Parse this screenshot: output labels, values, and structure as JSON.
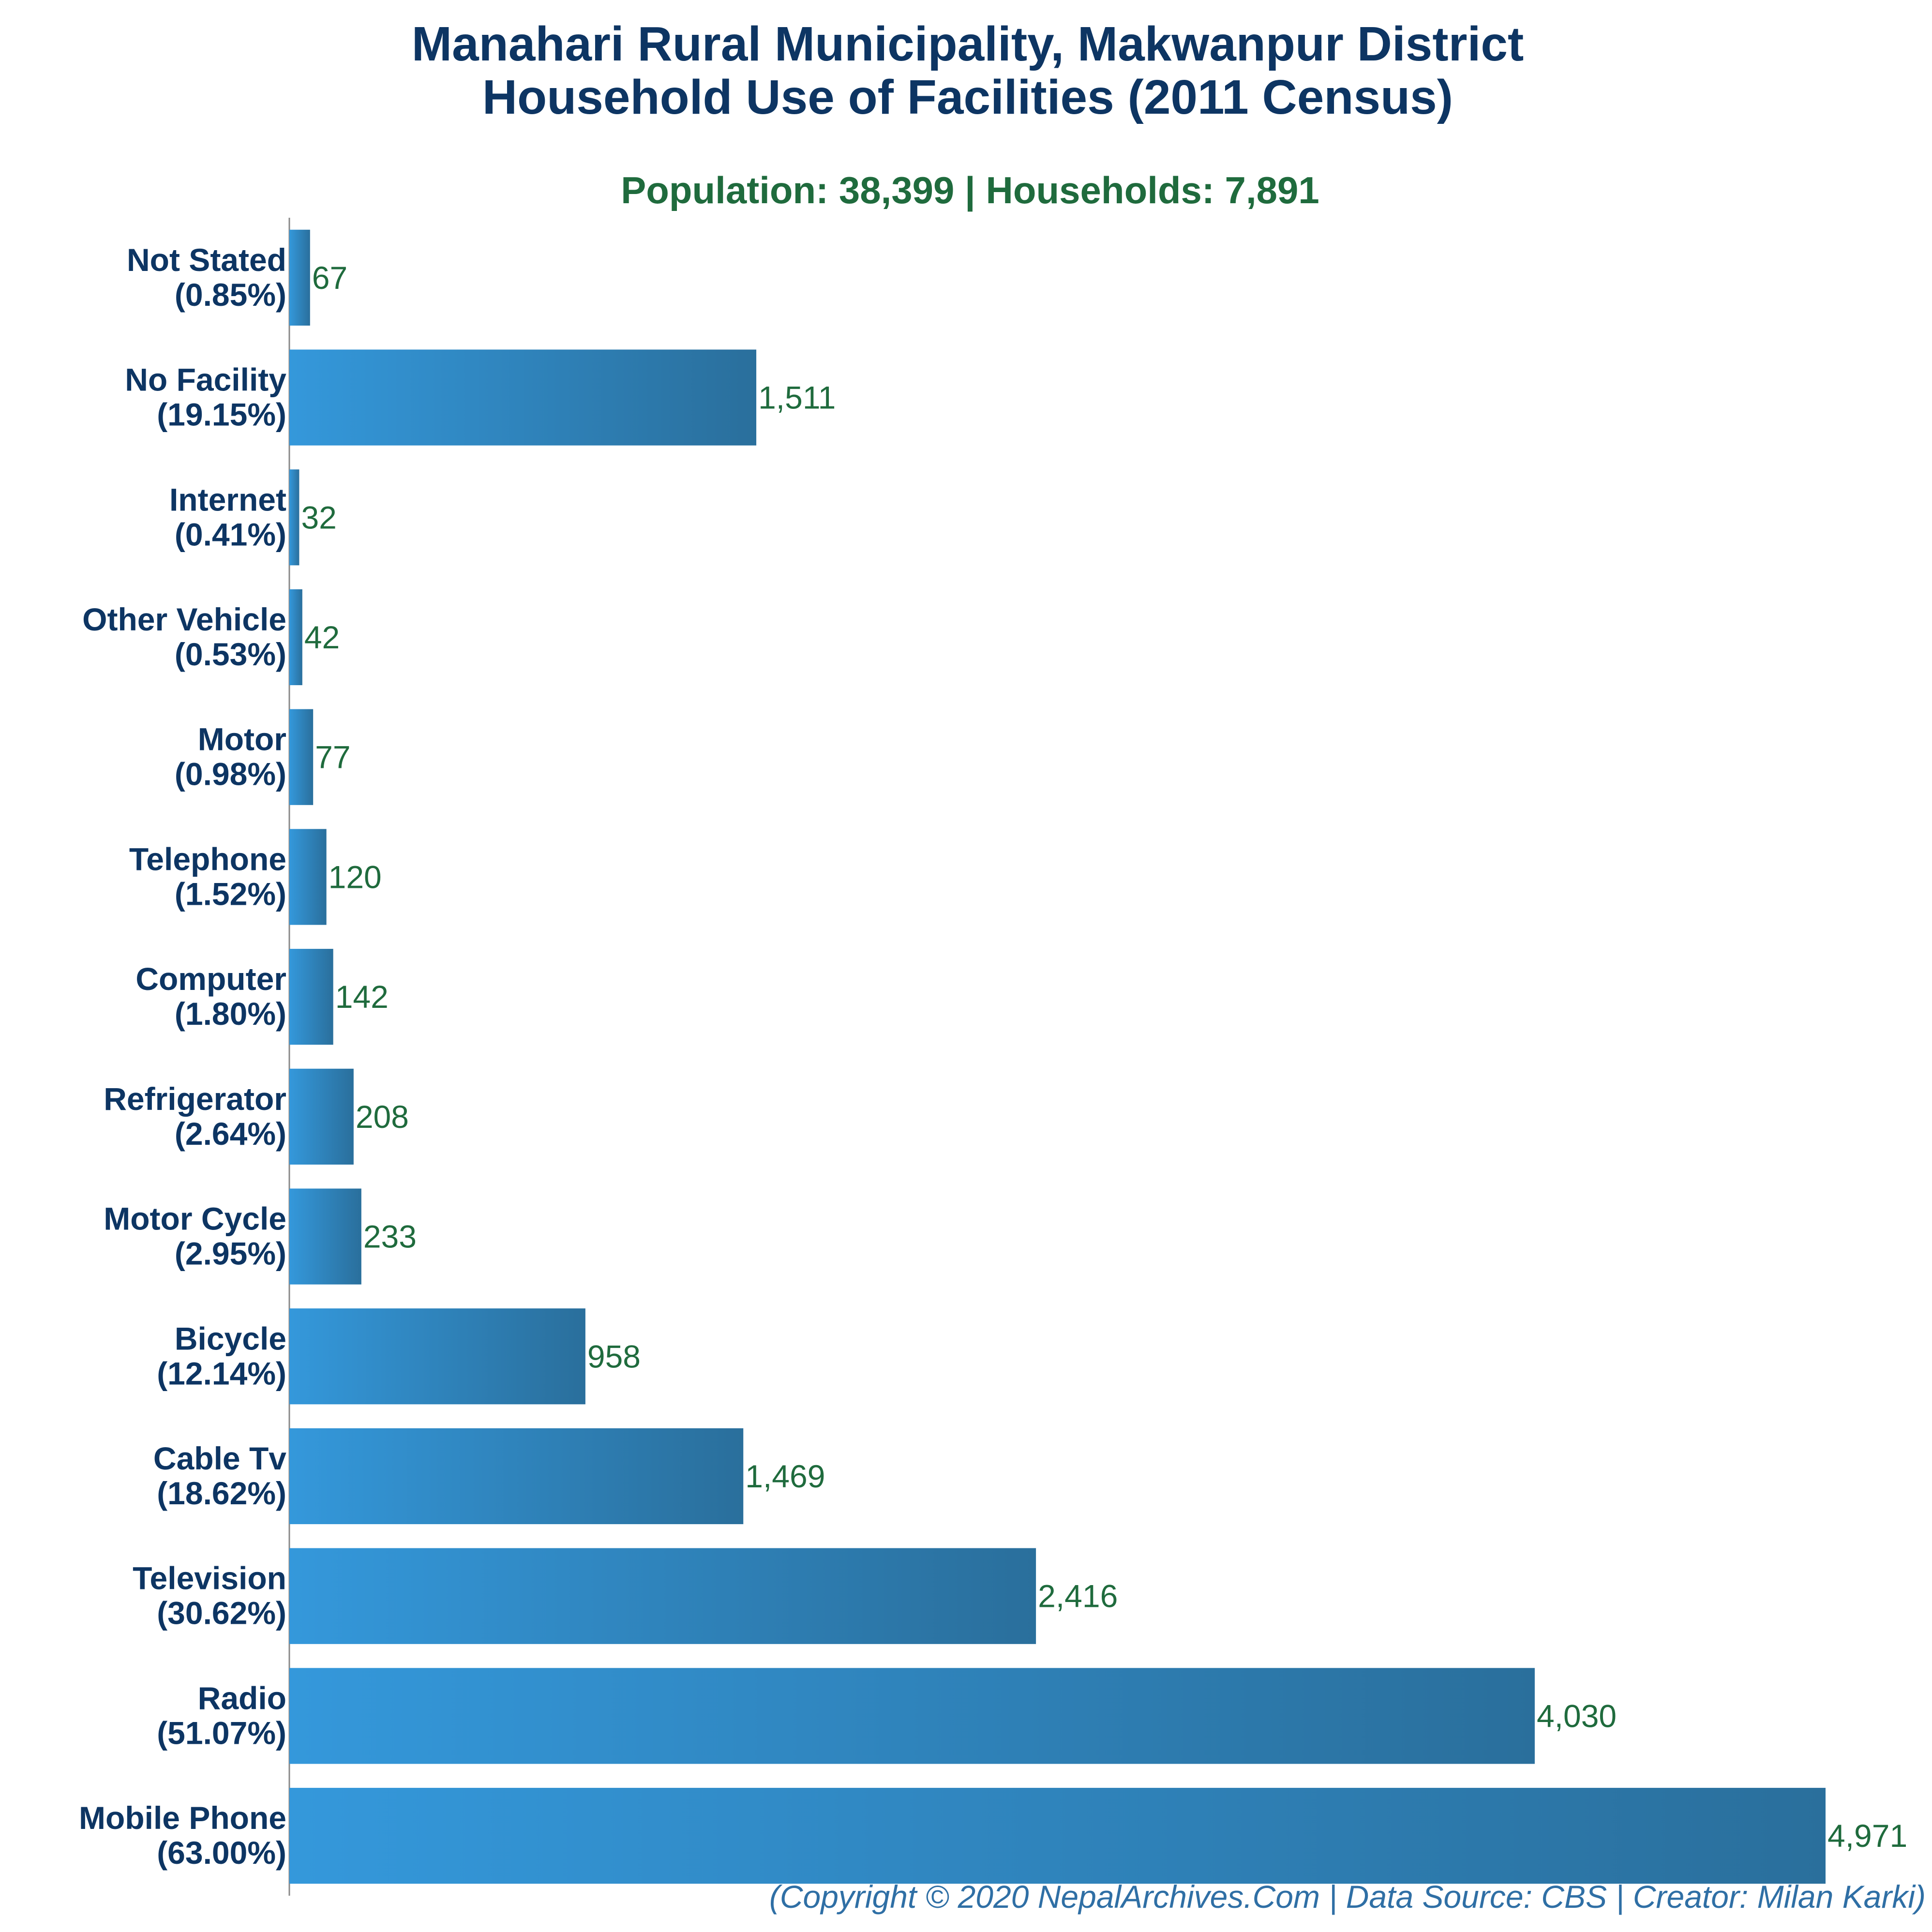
{
  "chart_data": {
    "type": "bar",
    "orientation": "horizontal",
    "title": [
      "Manahari Rural Municipality, Makwanpur District",
      "Household Use of Facilities (2011 Census)"
    ],
    "subtitle": "Population: 38,399 | Households: 7,891",
    "footer": "(Copyright © 2020 NepalArchives.Com | Data Source: CBS | Creator: Milan Karki)",
    "categories": [
      {
        "name": "Not Stated",
        "percent": "(0.85%)",
        "value": 67,
        "value_label": "67"
      },
      {
        "name": "No Facility",
        "percent": "(19.15%)",
        "value": 1511,
        "value_label": "1,511"
      },
      {
        "name": "Internet",
        "percent": "(0.41%)",
        "value": 32,
        "value_label": "32"
      },
      {
        "name": "Other Vehicle",
        "percent": "(0.53%)",
        "value": 42,
        "value_label": "42"
      },
      {
        "name": "Motor",
        "percent": "(0.98%)",
        "value": 77,
        "value_label": "77"
      },
      {
        "name": "Telephone",
        "percent": "(1.52%)",
        "value": 120,
        "value_label": "120"
      },
      {
        "name": "Computer",
        "percent": "(1.80%)",
        "value": 142,
        "value_label": "142"
      },
      {
        "name": "Refrigerator",
        "percent": "(2.64%)",
        "value": 208,
        "value_label": "208"
      },
      {
        "name": "Motor Cycle",
        "percent": "(2.95%)",
        "value": 233,
        "value_label": "233"
      },
      {
        "name": "Bicycle",
        "percent": "(12.14%)",
        "value": 958,
        "value_label": "958"
      },
      {
        "name": "Cable Tv",
        "percent": "(18.62%)",
        "value": 1469,
        "value_label": "1,469"
      },
      {
        "name": "Television",
        "percent": "(30.62%)",
        "value": 2416,
        "value_label": "2,416"
      },
      {
        "name": "Radio",
        "percent": "(51.07%)",
        "value": 4030,
        "value_label": "4,030"
      },
      {
        "name": "Mobile Phone",
        "percent": "(63.00%)",
        "value": 4971,
        "value_label": "4,971"
      }
    ],
    "xlim": [
      0,
      4971
    ],
    "grid": false,
    "colors": {
      "bar_light": "#3498db",
      "bar_dark": "#2a6f9c",
      "axis": "#888888"
    }
  }
}
